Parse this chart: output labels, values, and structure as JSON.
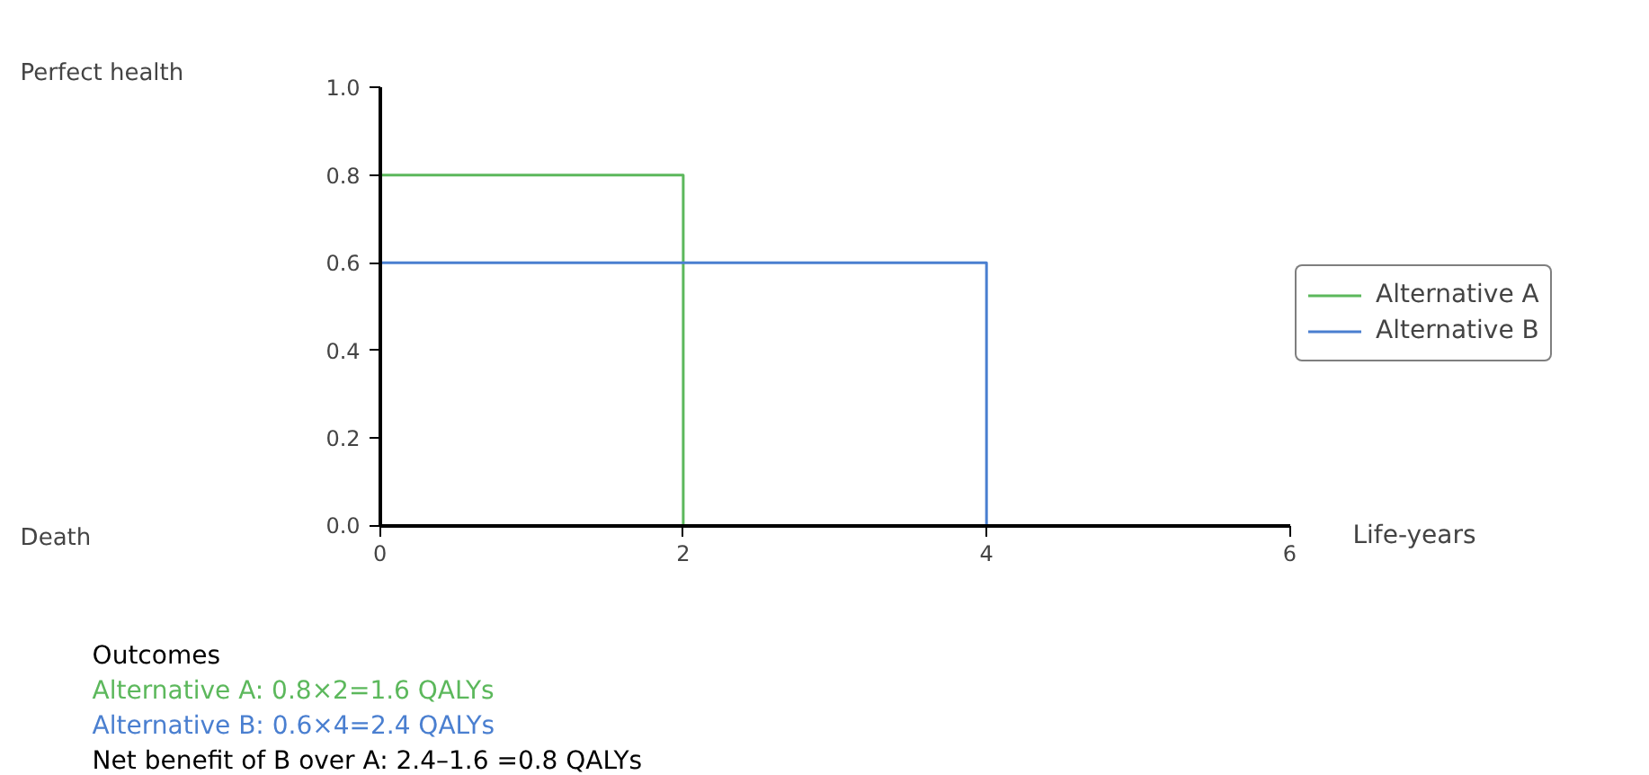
{
  "chart_data": {
    "type": "line",
    "xlabel": "Life-years",
    "series": [
      {
        "name": "Alternative A",
        "color": "#5cb85c",
        "x": [
          0,
          2,
          2
        ],
        "values": [
          0.8,
          0.8,
          0.0
        ]
      },
      {
        "name": "Alternative B",
        "color": "#4a7fd0",
        "x": [
          0,
          4,
          4
        ],
        "values": [
          0.6,
          0.6,
          0.0
        ]
      }
    ],
    "xlim": [
      0,
      6
    ],
    "xticks": [
      0,
      2,
      4,
      6
    ],
    "ylim": [
      0,
      1.0
    ],
    "yticks": [
      {
        "value": 0,
        "label": "0.0"
      },
      {
        "value": 0.2,
        "label": "0.2"
      },
      {
        "value": 0.4,
        "label": "0.4"
      },
      {
        "value": 0.6,
        "label": "0.6"
      },
      {
        "value": 0.8,
        "label": "0.8"
      },
      {
        "value": 1.0,
        "label": "1.0"
      }
    ],
    "grid": false,
    "legend": "right",
    "marker": "none",
    "line_style": "solid",
    "annotations": [
      "Perfect health",
      "Death",
      "Outcomes",
      "Alternative A: 0.8×2=1.6 QALYs",
      "Alternative B: 0.6×4=2.4 QALYs",
      "Net benefit of B over A: 2.4–1.6 =0.8 QALYs"
    ]
  }
}
